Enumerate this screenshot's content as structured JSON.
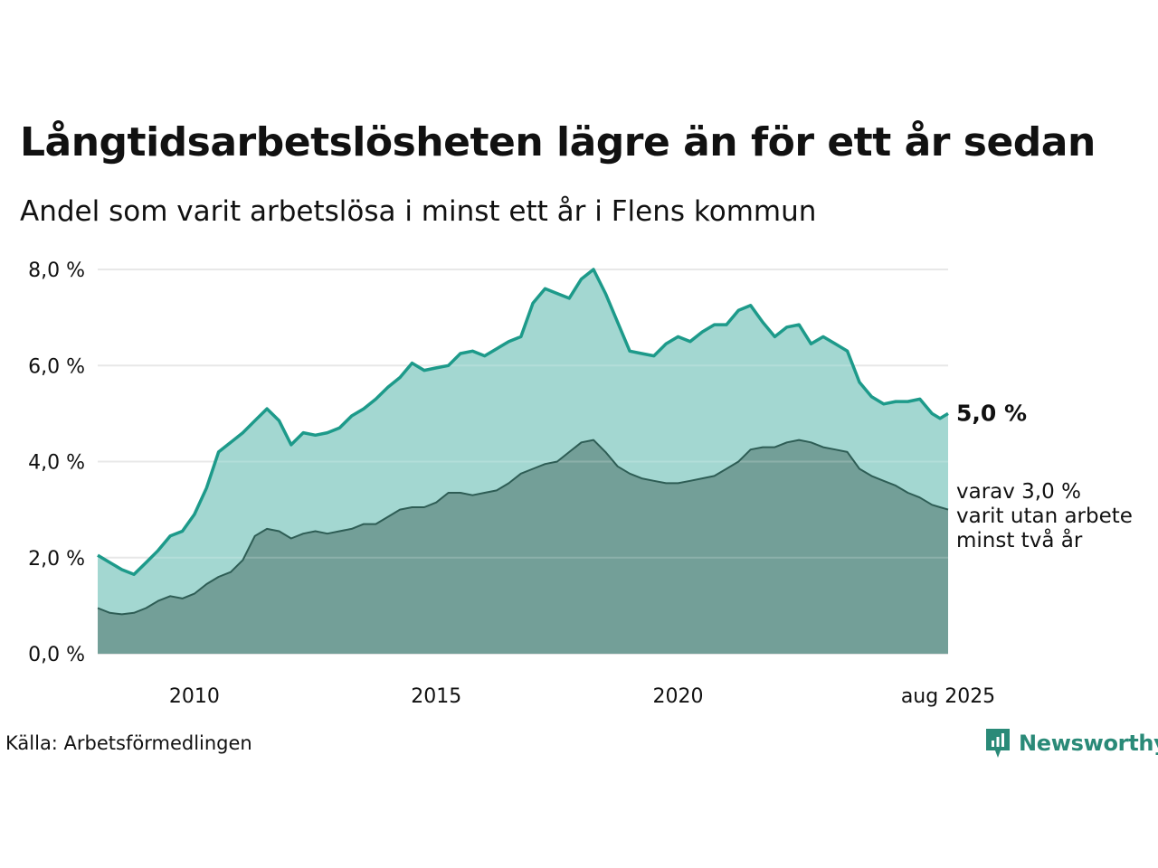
{
  "header": {
    "title": "Långtidsarbetslösheten lägre än för ett år sedan",
    "subtitle": "Andel som varit arbetslösa i minst ett år i Flens kommun"
  },
  "footer": {
    "source": "Källa: Arbetsförmedlingen",
    "brand": "Newsworthy",
    "brand_color": "#2a8a78"
  },
  "chart_data": {
    "type": "area",
    "x_start": "2008-01",
    "x_end": "2025-08",
    "ylim": [
      0,
      8
    ],
    "y_ticks": [
      "0,0 %",
      "2,0 %",
      "4,0 %",
      "6,0 %",
      "8,0 %"
    ],
    "x_ticks": [
      "2010",
      "2015",
      "2020",
      "aug 2025"
    ],
    "grid": true,
    "colors": {
      "total_line": "#1d9a8a",
      "total_fill": "#a3d7d1",
      "long_line": "#2e5d55",
      "long_fill": "#739f98",
      "grid": "#e3e3e3"
    },
    "series": [
      {
        "key": "total",
        "label_value": "5,0 %",
        "points": [
          [
            "2008-01",
            2.05
          ],
          [
            "2008-04",
            1.9
          ],
          [
            "2008-07",
            1.75
          ],
          [
            "2008-10",
            1.65
          ],
          [
            "2009-01",
            1.9
          ],
          [
            "2009-04",
            2.15
          ],
          [
            "2009-07",
            2.45
          ],
          [
            "2009-10",
            2.55
          ],
          [
            "2010-01",
            2.9
          ],
          [
            "2010-04",
            3.45
          ],
          [
            "2010-07",
            4.2
          ],
          [
            "2010-10",
            4.4
          ],
          [
            "2011-01",
            4.6
          ],
          [
            "2011-04",
            4.85
          ],
          [
            "2011-07",
            5.1
          ],
          [
            "2011-10",
            4.85
          ],
          [
            "2012-01",
            4.35
          ],
          [
            "2012-04",
            4.6
          ],
          [
            "2012-07",
            4.55
          ],
          [
            "2012-10",
            4.6
          ],
          [
            "2013-01",
            4.7
          ],
          [
            "2013-04",
            4.95
          ],
          [
            "2013-07",
            5.1
          ],
          [
            "2013-10",
            5.3
          ],
          [
            "2014-01",
            5.55
          ],
          [
            "2014-04",
            5.75
          ],
          [
            "2014-07",
            6.05
          ],
          [
            "2014-10",
            5.9
          ],
          [
            "2015-01",
            5.95
          ],
          [
            "2015-04",
            6.0
          ],
          [
            "2015-07",
            6.25
          ],
          [
            "2015-10",
            6.3
          ],
          [
            "2016-01",
            6.2
          ],
          [
            "2016-04",
            6.35
          ],
          [
            "2016-07",
            6.5
          ],
          [
            "2016-10",
            6.6
          ],
          [
            "2017-01",
            7.3
          ],
          [
            "2017-04",
            7.6
          ],
          [
            "2017-07",
            7.5
          ],
          [
            "2017-10",
            7.4
          ],
          [
            "2018-01",
            7.8
          ],
          [
            "2018-04",
            8.0
          ],
          [
            "2018-07",
            7.5
          ],
          [
            "2018-10",
            6.9
          ],
          [
            "2019-01",
            6.3
          ],
          [
            "2019-04",
            6.25
          ],
          [
            "2019-07",
            6.2
          ],
          [
            "2019-10",
            6.45
          ],
          [
            "2020-01",
            6.6
          ],
          [
            "2020-04",
            6.5
          ],
          [
            "2020-07",
            6.7
          ],
          [
            "2020-10",
            6.85
          ],
          [
            "2021-01",
            6.85
          ],
          [
            "2021-04",
            7.15
          ],
          [
            "2021-07",
            7.25
          ],
          [
            "2021-10",
            6.9
          ],
          [
            "2022-01",
            6.6
          ],
          [
            "2022-04",
            6.8
          ],
          [
            "2022-07",
            6.85
          ],
          [
            "2022-10",
            6.45
          ],
          [
            "2023-01",
            6.6
          ],
          [
            "2023-04",
            6.45
          ],
          [
            "2023-07",
            6.3
          ],
          [
            "2023-10",
            5.65
          ],
          [
            "2024-01",
            5.35
          ],
          [
            "2024-04",
            5.2
          ],
          [
            "2024-07",
            5.25
          ],
          [
            "2024-10",
            5.25
          ],
          [
            "2025-01",
            5.3
          ],
          [
            "2025-04",
            5.0
          ],
          [
            "2025-06",
            4.9
          ],
          [
            "2025-08",
            5.0
          ]
        ]
      },
      {
        "key": "long",
        "label_lines": [
          "varav 3,0 %",
          "varit utan arbete",
          "minst två år"
        ],
        "points": [
          [
            "2008-01",
            0.95
          ],
          [
            "2008-04",
            0.85
          ],
          [
            "2008-07",
            0.82
          ],
          [
            "2008-10",
            0.85
          ],
          [
            "2009-01",
            0.95
          ],
          [
            "2009-04",
            1.1
          ],
          [
            "2009-07",
            1.2
          ],
          [
            "2009-10",
            1.15
          ],
          [
            "2010-01",
            1.25
          ],
          [
            "2010-04",
            1.45
          ],
          [
            "2010-07",
            1.6
          ],
          [
            "2010-10",
            1.7
          ],
          [
            "2011-01",
            1.95
          ],
          [
            "2011-04",
            2.45
          ],
          [
            "2011-07",
            2.6
          ],
          [
            "2011-10",
            2.55
          ],
          [
            "2012-01",
            2.4
          ],
          [
            "2012-04",
            2.5
          ],
          [
            "2012-07",
            2.55
          ],
          [
            "2012-10",
            2.5
          ],
          [
            "2013-01",
            2.55
          ],
          [
            "2013-04",
            2.6
          ],
          [
            "2013-07",
            2.7
          ],
          [
            "2013-10",
            2.7
          ],
          [
            "2014-01",
            2.85
          ],
          [
            "2014-04",
            3.0
          ],
          [
            "2014-07",
            3.05
          ],
          [
            "2014-10",
            3.05
          ],
          [
            "2015-01",
            3.15
          ],
          [
            "2015-04",
            3.35
          ],
          [
            "2015-07",
            3.35
          ],
          [
            "2015-10",
            3.3
          ],
          [
            "2016-01",
            3.35
          ],
          [
            "2016-04",
            3.4
          ],
          [
            "2016-07",
            3.55
          ],
          [
            "2016-10",
            3.75
          ],
          [
            "2017-01",
            3.85
          ],
          [
            "2017-04",
            3.95
          ],
          [
            "2017-07",
            4.0
          ],
          [
            "2017-10",
            4.2
          ],
          [
            "2018-01",
            4.4
          ],
          [
            "2018-04",
            4.45
          ],
          [
            "2018-07",
            4.2
          ],
          [
            "2018-10",
            3.9
          ],
          [
            "2019-01",
            3.75
          ],
          [
            "2019-04",
            3.65
          ],
          [
            "2019-07",
            3.6
          ],
          [
            "2019-10",
            3.55
          ],
          [
            "2020-01",
            3.55
          ],
          [
            "2020-04",
            3.6
          ],
          [
            "2020-07",
            3.65
          ],
          [
            "2020-10",
            3.7
          ],
          [
            "2021-01",
            3.85
          ],
          [
            "2021-04",
            4.0
          ],
          [
            "2021-07",
            4.25
          ],
          [
            "2021-10",
            4.3
          ],
          [
            "2022-01",
            4.3
          ],
          [
            "2022-04",
            4.4
          ],
          [
            "2022-07",
            4.45
          ],
          [
            "2022-10",
            4.4
          ],
          [
            "2023-01",
            4.3
          ],
          [
            "2023-04",
            4.25
          ],
          [
            "2023-07",
            4.2
          ],
          [
            "2023-10",
            3.85
          ],
          [
            "2024-01",
            3.7
          ],
          [
            "2024-04",
            3.6
          ],
          [
            "2024-07",
            3.5
          ],
          [
            "2024-10",
            3.35
          ],
          [
            "2025-01",
            3.25
          ],
          [
            "2025-04",
            3.1
          ],
          [
            "2025-06",
            3.05
          ],
          [
            "2025-08",
            3.0
          ]
        ]
      }
    ]
  }
}
